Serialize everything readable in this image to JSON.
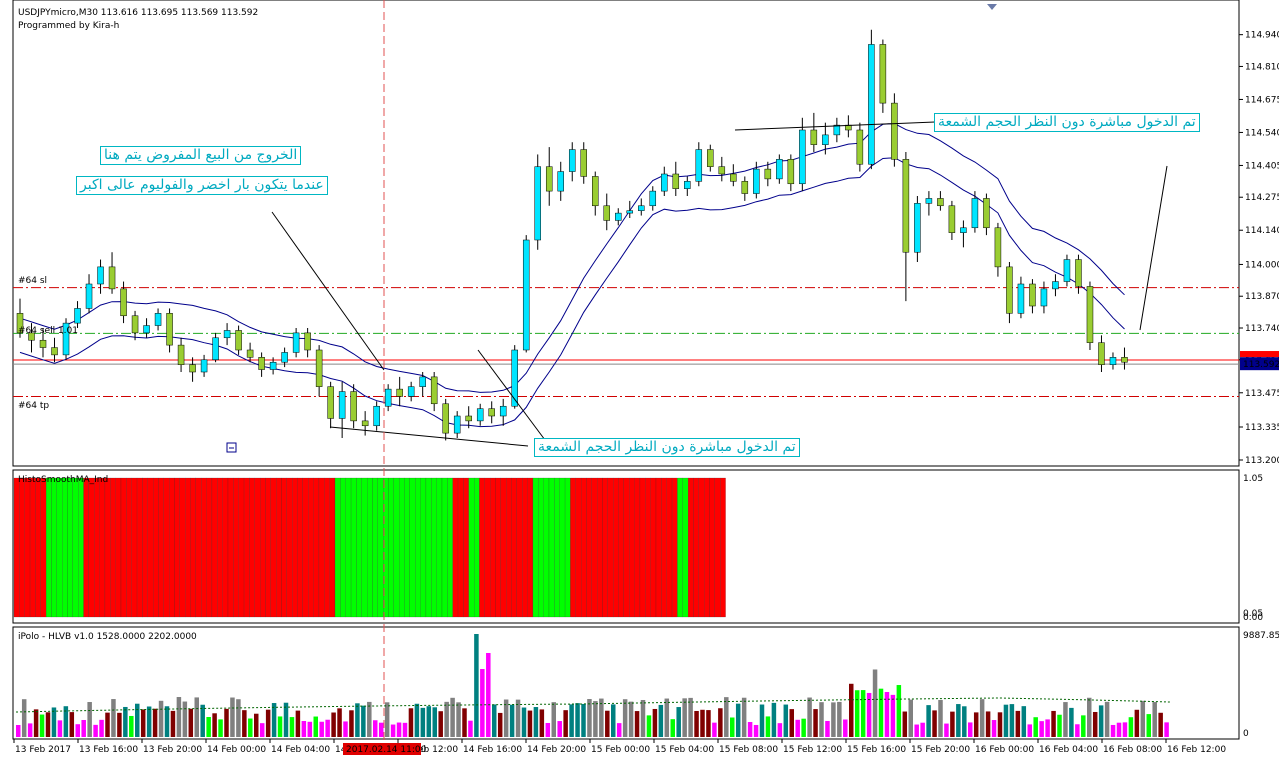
{
  "header": {
    "symbol_line": "USDJPYmicro,M30  113.616 113.695 113.569 113.592",
    "author": "Programmed by Kira-h"
  },
  "annotations": {
    "exit_line1": "الخروج من البيع المفروض يتم هنا",
    "exit_line2": "عندما يتكون بار اخضر والفوليوم عالى اكبر",
    "entry_top": "تم الدخول مباشرة  دون النظر الحجم الشمعة",
    "entry_bottom": "تم الدخول مباشرة  دون النظر الحجم الشمعة"
  },
  "levels": {
    "sl_label": "#64 sl",
    "sell_label": "#64 sell 1.01",
    "tp_label": "#64 tp"
  },
  "price_axis": {
    "ticks": [
      "114.940",
      "114.810",
      "114.675",
      "114.540",
      "114.405",
      "114.275",
      "114.140",
      "114.000",
      "113.870",
      "113.740",
      "113.610",
      "113.475",
      "113.335",
      "113.200"
    ],
    "current_price": "113.592",
    "marker_price": "113.609"
  },
  "indicator1": {
    "title": "HistoSmoothMA_Ind",
    "ticks": [
      "1.05",
      "0.05",
      "0.00"
    ]
  },
  "indicator2": {
    "title": "iPolo - HLVB v1.0 1528.0000 2202.0000",
    "ticks": [
      "9887.85",
      "0"
    ]
  },
  "time_axis": {
    "labels": [
      "13 Feb 2017",
      "13 Feb 16:00",
      "13 Feb 20:00",
      "14 Feb 00:00",
      "14 Feb 04:00",
      "14 Feb 08:00",
      "14 Feb 12:00",
      "14 Feb 16:00",
      "14 Feb 20:00",
      "15 Feb 00:00",
      "15 Feb 04:00",
      "15 Feb 08:00",
      "15 Feb 12:00",
      "15 Feb 16:00",
      "15 Feb 20:00",
      "16 Feb 00:00",
      "16 Feb 04:00",
      "16 Feb 08:00",
      "16 Feb 12:00"
    ],
    "cursor_label": "2017.02.14 11:00"
  },
  "colors": {
    "bull": "#00e5ff",
    "bear": "#9acd32",
    "histo_red": "#ff0000",
    "histo_green": "#00ff00",
    "ma": "#00008b",
    "sl_line": "#d00000",
    "sell_line": "#22aa22",
    "price_line": "#ff0000"
  },
  "chart_data": {
    "type": "candlestick",
    "timeframe": "M30",
    "symbol": "USDJPYmicro",
    "ylim": [
      113.2,
      115.0
    ],
    "ohlc_approx": [
      [
        113.8,
        113.86,
        113.7,
        113.72
      ],
      [
        113.72,
        113.76,
        113.64,
        113.69
      ],
      [
        113.69,
        113.74,
        113.62,
        113.66
      ],
      [
        113.66,
        113.7,
        113.6,
        113.63
      ],
      [
        113.63,
        113.78,
        113.61,
        113.76
      ],
      [
        113.76,
        113.85,
        113.74,
        113.82
      ],
      [
        113.82,
        113.96,
        113.8,
        113.92
      ],
      [
        113.92,
        114.02,
        113.88,
        113.99
      ],
      [
        113.99,
        114.05,
        113.88,
        113.9
      ],
      [
        113.9,
        113.93,
        113.76,
        113.79
      ],
      [
        113.79,
        113.81,
        113.69,
        113.72
      ],
      [
        113.72,
        113.78,
        113.7,
        113.75
      ],
      [
        113.75,
        113.82,
        113.73,
        113.8
      ],
      [
        113.8,
        113.82,
        113.64,
        113.67
      ],
      [
        113.67,
        113.7,
        113.56,
        113.59
      ],
      [
        113.59,
        113.62,
        113.52,
        113.56
      ],
      [
        113.56,
        113.63,
        113.54,
        113.61
      ],
      [
        113.61,
        113.72,
        113.6,
        113.7
      ],
      [
        113.7,
        113.76,
        113.67,
        113.73
      ],
      [
        113.73,
        113.75,
        113.63,
        113.65
      ],
      [
        113.65,
        113.68,
        113.6,
        113.62
      ],
      [
        113.62,
        113.64,
        113.54,
        113.57
      ],
      [
        113.57,
        113.62,
        113.55,
        113.6
      ],
      [
        113.6,
        113.66,
        113.58,
        113.64
      ],
      [
        113.64,
        113.74,
        113.62,
        113.72
      ],
      [
        113.72,
        113.74,
        113.62,
        113.65
      ],
      [
        113.65,
        113.67,
        113.46,
        113.5
      ],
      [
        113.5,
        113.52,
        113.33,
        113.37
      ],
      [
        113.37,
        113.52,
        113.29,
        113.48
      ],
      [
        113.48,
        113.51,
        113.33,
        113.36
      ],
      [
        113.36,
        113.4,
        113.3,
        113.34
      ],
      [
        113.34,
        113.44,
        113.32,
        113.42
      ],
      [
        113.42,
        113.51,
        113.4,
        113.49
      ],
      [
        113.49,
        113.54,
        113.42,
        113.46
      ],
      [
        113.46,
        113.52,
        113.44,
        113.5
      ],
      [
        113.5,
        113.56,
        113.46,
        113.54
      ],
      [
        113.54,
        113.56,
        113.4,
        113.43
      ],
      [
        113.43,
        113.45,
        113.28,
        113.31
      ],
      [
        113.31,
        113.4,
        113.29,
        113.38
      ],
      [
        113.38,
        113.42,
        113.33,
        113.36
      ],
      [
        113.36,
        113.43,
        113.34,
        113.41
      ],
      [
        113.41,
        113.44,
        113.35,
        113.38
      ],
      [
        113.38,
        113.45,
        113.34,
        113.42
      ],
      [
        113.42,
        113.67,
        113.41,
        113.65
      ],
      [
        113.65,
        114.12,
        113.64,
        114.1
      ],
      [
        114.1,
        114.45,
        114.06,
        114.4
      ],
      [
        114.4,
        114.48,
        114.24,
        114.3
      ],
      [
        114.3,
        114.42,
        114.26,
        114.38
      ],
      [
        114.38,
        114.5,
        114.34,
        114.47
      ],
      [
        114.47,
        114.5,
        114.33,
        114.36
      ],
      [
        114.36,
        114.38,
        114.2,
        114.24
      ],
      [
        114.24,
        114.29,
        114.14,
        114.18
      ],
      [
        114.18,
        114.23,
        114.16,
        114.21
      ],
      [
        114.21,
        114.26,
        114.19,
        114.22
      ],
      [
        114.22,
        114.27,
        114.2,
        114.24
      ],
      [
        114.24,
        114.32,
        114.22,
        114.3
      ],
      [
        114.3,
        114.4,
        114.28,
        114.37
      ],
      [
        114.37,
        114.42,
        114.28,
        114.31
      ],
      [
        114.31,
        114.36,
        114.28,
        114.34
      ],
      [
        114.34,
        114.5,
        114.32,
        114.47
      ],
      [
        114.47,
        114.49,
        114.38,
        114.4
      ],
      [
        114.4,
        114.44,
        114.34,
        114.37
      ],
      [
        114.37,
        114.41,
        114.32,
        114.34
      ],
      [
        114.34,
        114.36,
        114.26,
        114.29
      ],
      [
        114.29,
        114.42,
        114.27,
        114.39
      ],
      [
        114.39,
        114.42,
        114.32,
        114.35
      ],
      [
        114.35,
        114.45,
        114.33,
        114.43
      ],
      [
        114.43,
        114.45,
        114.3,
        114.33
      ],
      [
        114.33,
        114.6,
        114.3,
        114.55
      ],
      [
        114.55,
        114.62,
        114.46,
        114.49
      ],
      [
        114.49,
        114.58,
        114.45,
        114.53
      ],
      [
        114.53,
        114.6,
        114.5,
        114.57
      ],
      [
        114.57,
        114.61,
        114.52,
        114.55
      ],
      [
        114.55,
        114.58,
        114.38,
        114.41
      ],
      [
        114.41,
        114.96,
        114.39,
        114.9
      ],
      [
        114.9,
        114.92,
        114.62,
        114.66
      ],
      [
        114.66,
        114.7,
        114.4,
        114.43
      ],
      [
        114.43,
        114.46,
        113.85,
        114.05
      ],
      [
        114.05,
        114.28,
        114.01,
        114.25
      ],
      [
        114.25,
        114.3,
        114.2,
        114.27
      ],
      [
        114.27,
        114.3,
        114.22,
        114.24
      ],
      [
        114.24,
        114.26,
        114.1,
        114.13
      ],
      [
        114.13,
        114.18,
        114.07,
        114.15
      ],
      [
        114.15,
        114.3,
        114.13,
        114.27
      ],
      [
        114.27,
        114.29,
        114.12,
        114.15
      ],
      [
        114.15,
        114.17,
        113.95,
        113.99
      ],
      [
        113.99,
        114.01,
        113.76,
        113.8
      ],
      [
        113.8,
        113.95,
        113.78,
        113.92
      ],
      [
        113.92,
        113.94,
        113.8,
        113.83
      ],
      [
        113.83,
        113.93,
        113.8,
        113.9
      ],
      [
        113.9,
        113.96,
        113.87,
        113.93
      ],
      [
        113.93,
        114.04,
        113.91,
        114.02
      ],
      [
        114.02,
        114.04,
        113.88,
        113.91
      ],
      [
        113.91,
        113.93,
        113.65,
        113.68
      ],
      [
        113.68,
        113.71,
        113.56,
        113.59
      ],
      [
        113.59,
        113.64,
        113.57,
        113.62
      ],
      [
        113.62,
        113.66,
        113.57,
        113.6
      ]
    ],
    "moving_averages": [
      "upper envelope",
      "lower envelope"
    ],
    "horizontal_lines": {
      "stop_loss": 113.905,
      "sell_entry": 113.718,
      "take_profit": 113.46,
      "current": 113.592
    }
  }
}
